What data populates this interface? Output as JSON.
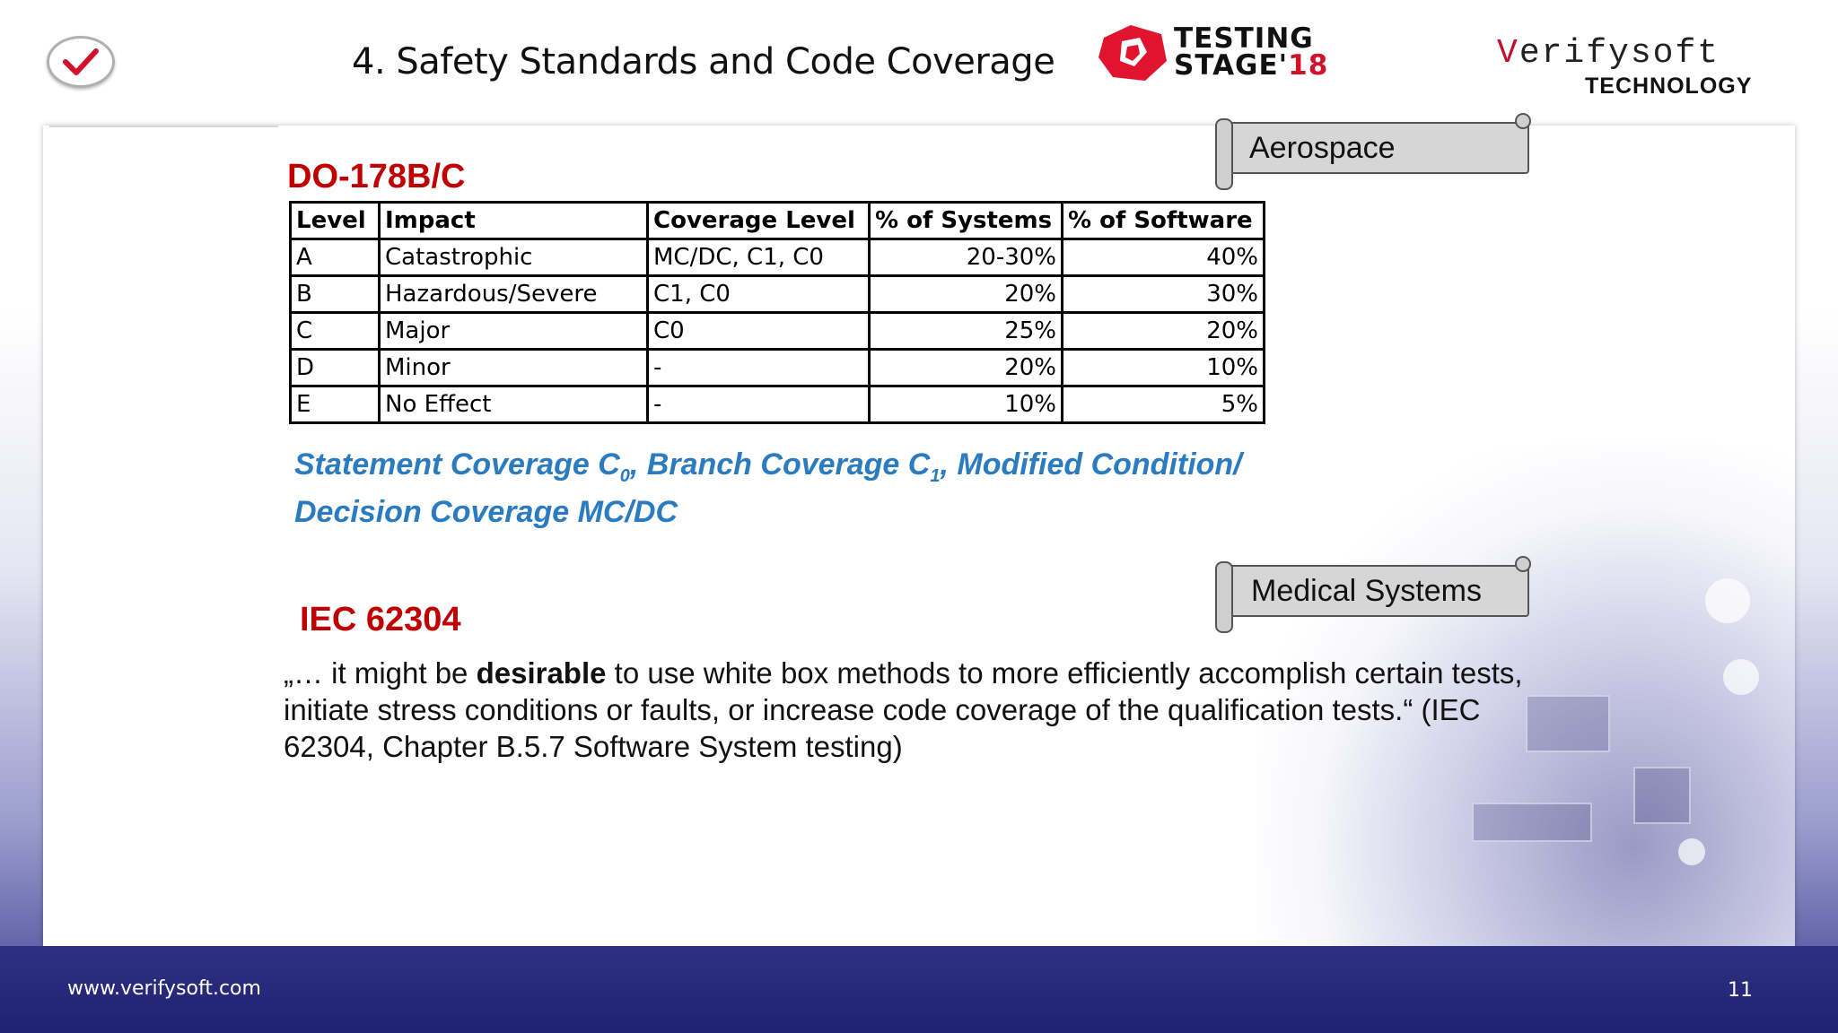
{
  "header": {
    "title": "4. Safety Standards and Code Coverage",
    "testing_stage_line1": "TESTING",
    "testing_stage_line2": "STAGE'",
    "testing_stage_year": "18",
    "verifysoft_v": "V",
    "verifysoft_rest": "erifysoft",
    "verifysoft_tech": "TECHNOLOGY"
  },
  "aerospace": {
    "tag": "Aerospace",
    "standard": "DO-178B/C",
    "table": {
      "headers": [
        "Level",
        "Impact",
        "Coverage Level",
        "% of Systems",
        "% of Software"
      ],
      "rows": [
        [
          "A",
          "Catastrophic",
          "MC/DC, C1, C0",
          "20-30%",
          "40%"
        ],
        [
          "B",
          "Hazardous/Severe",
          "C1, C0",
          "20%",
          "30%"
        ],
        [
          "C",
          "Major",
          "C0",
          "25%",
          "20%"
        ],
        [
          "D",
          "Minor",
          "-",
          "20%",
          "10%"
        ],
        [
          "E",
          "No Effect",
          "-",
          "10%",
          "5%"
        ]
      ]
    },
    "note": {
      "part1": "Statement Coverage C",
      "sub1": "0",
      "part2": ", Branch Coverage C",
      "sub2": "1",
      "part3": ", Modified Condition/ Decision Coverage MC/DC"
    }
  },
  "medical": {
    "tag": "Medical Systems",
    "standard": "IEC 62304",
    "quote_before": "„… it might be ",
    "quote_bold": "desirable",
    "quote_after": " to use white box methods to more efficiently accomplish certain tests, initiate stress conditions or faults, or increase code coverage of the qualification tests.“ (IEC 62304, Chapter B.5.7 Software System testing)"
  },
  "footer": {
    "url": "www.verifysoft.com",
    "page": "11"
  },
  "colors": {
    "accent_red": "#c00000",
    "note_blue": "#2a7bbf",
    "footer_navy": "#2e3183"
  }
}
